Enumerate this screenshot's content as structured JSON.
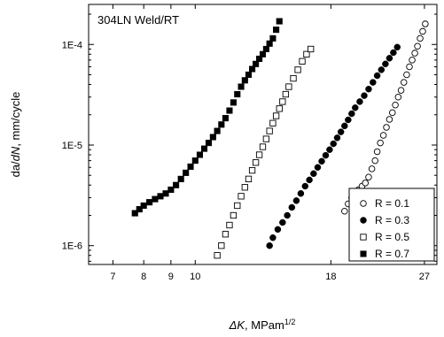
{
  "chart_data": {
    "type": "scatter",
    "title": "304LN Weld/RT",
    "xlabel_italic": "ΔK",
    "xlabel_rest": ", MPam",
    "xlabel_sup": "1/2",
    "ylabel_parts": [
      "da/",
      "dN",
      ", mm/cycle"
    ],
    "x_scale": "log",
    "y_scale": "log",
    "xlim": [
      6.3,
      28.5
    ],
    "ylim": [
      6.5e-07,
      0.00025
    ],
    "x_ticks": [
      {
        "value": 7,
        "label": "7"
      },
      {
        "value": 8,
        "label": "8"
      },
      {
        "value": 9,
        "label": "9"
      },
      {
        "value": 10,
        "label": "10"
      },
      {
        "value": 18,
        "label": "18"
      },
      {
        "value": 27,
        "label": "27"
      }
    ],
    "y_ticks": [
      {
        "value": 1e-06,
        "label": "1E-6"
      },
      {
        "value": 1e-05,
        "label": "1E-5"
      },
      {
        "value": 0.0001,
        "label": "1E-4"
      }
    ],
    "grid": false,
    "legend_position": "bottom-right",
    "series": [
      {
        "name": "R = 0.1",
        "marker": "circle-open",
        "x": [
          19.1,
          19.4,
          19.7,
          20.0,
          20.3,
          20.6,
          20.9,
          21.2,
          21.5,
          21.8,
          22.0,
          22.3,
          22.6,
          22.9,
          23.2,
          23.5,
          23.8,
          24.1,
          24.4,
          24.7,
          25.0,
          25.3,
          25.6,
          25.9,
          26.2,
          26.5,
          26.8,
          27.1
        ],
        "y": [
          2.2e-06,
          2.6e-06,
          3e-06,
          3.3e-06,
          3.6e-06,
          3.9e-06,
          4.2e-06,
          4.8e-06,
          5.8e-06,
          7e-06,
          8.6e-06,
          1.05e-05,
          1.25e-05,
          1.5e-05,
          1.8e-05,
          2.1e-05,
          2.5e-05,
          3e-05,
          3.5e-05,
          4.2e-05,
          5e-05,
          6e-05,
          7e-05,
          8.2e-05,
          9.6e-05,
          0.000115,
          0.000135,
          0.00016
        ]
      },
      {
        "name": "R = 0.3",
        "marker": "circle-filled",
        "x": [
          13.8,
          14.0,
          14.3,
          14.6,
          14.9,
          15.2,
          15.5,
          15.8,
          16.1,
          16.4,
          16.7,
          17.0,
          17.3,
          17.6,
          17.9,
          18.2,
          18.5,
          18.8,
          19.1,
          19.4,
          19.7,
          20.0,
          20.4,
          20.8,
          21.2,
          21.6,
          22.0,
          22.4,
          22.8,
          23.2,
          23.6,
          24.0
        ],
        "y": [
          1e-06,
          1.2e-06,
          1.45e-06,
          1.7e-06,
          2e-06,
          2.4e-06,
          2.8e-06,
          3.3e-06,
          3.9e-06,
          4.5e-06,
          5.2e-06,
          6e-06,
          6.9e-06,
          7.9e-06,
          9e-06,
          1.03e-05,
          1.18e-05,
          1.35e-05,
          1.55e-05,
          1.78e-05,
          2.05e-05,
          2.35e-05,
          2.7e-05,
          3.1e-05,
          3.6e-05,
          4.2e-05,
          4.9e-05,
          5.6e-05,
          6.4e-05,
          7.3e-05,
          8.3e-05,
          9.4e-05
        ]
      },
      {
        "name": "R = 0.5",
        "marker": "square-open",
        "x": [
          11.0,
          11.2,
          11.4,
          11.6,
          11.8,
          12.0,
          12.2,
          12.4,
          12.6,
          12.8,
          13.0,
          13.2,
          13.4,
          13.6,
          13.8,
          14.0,
          14.2,
          14.4,
          14.6,
          14.8,
          15.0,
          15.3,
          15.6,
          15.9,
          16.2,
          16.5
        ],
        "y": [
          8e-07,
          1e-06,
          1.3e-06,
          1.6e-06,
          2e-06,
          2.5e-06,
          3.1e-06,
          3.8e-06,
          4.6e-06,
          5.6e-06,
          6.7e-06,
          8e-06,
          9.6e-06,
          1.15e-05,
          1.38e-05,
          1.65e-05,
          1.95e-05,
          2.3e-05,
          2.7e-05,
          3.2e-05,
          3.8e-05,
          4.6e-05,
          5.6e-05,
          6.8e-05,
          8e-05,
          9e-05
        ]
      },
      {
        "name": "R = 0.7",
        "marker": "square-filled",
        "x": [
          7.7,
          7.85,
          8.0,
          8.2,
          8.4,
          8.6,
          8.8,
          9.0,
          9.2,
          9.4,
          9.6,
          9.8,
          10.0,
          10.2,
          10.4,
          10.6,
          10.8,
          11.0,
          11.2,
          11.4,
          11.6,
          11.8,
          12.0,
          12.2,
          12.4,
          12.6,
          12.8,
          13.0,
          13.2,
          13.4,
          13.6,
          13.8,
          14.0,
          14.2,
          14.4
        ],
        "y": [
          2.1e-06,
          2.3e-06,
          2.5e-06,
          2.7e-06,
          2.9e-06,
          3.1e-06,
          3.3e-06,
          3.6e-06,
          4e-06,
          4.6e-06,
          5.3e-06,
          6.1e-06,
          7e-06,
          8e-06,
          9.2e-06,
          1.05e-05,
          1.2e-05,
          1.38e-05,
          1.6e-05,
          1.85e-05,
          2.2e-05,
          2.65e-05,
          3.2e-05,
          3.8e-05,
          4.4e-05,
          5e-05,
          5.7e-05,
          6.4e-05,
          7.2e-05,
          8e-05,
          9e-05,
          0.000102,
          0.000115,
          0.00014,
          0.00017
        ]
      }
    ]
  }
}
